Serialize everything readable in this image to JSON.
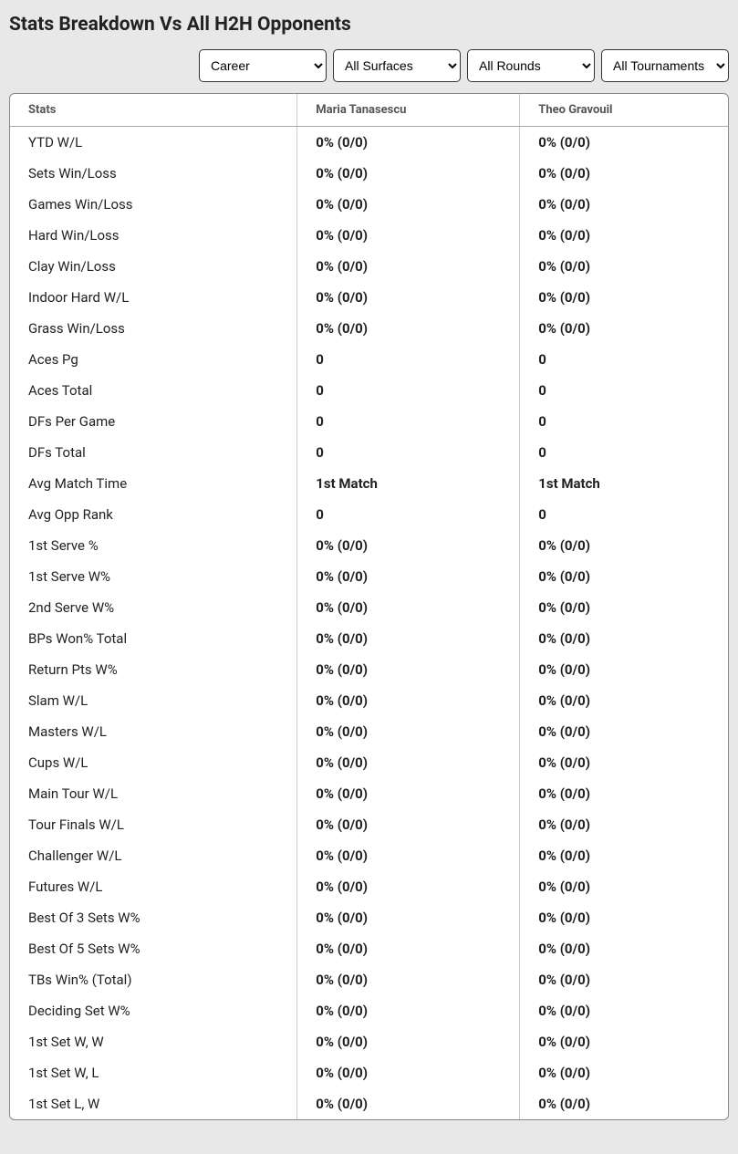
{
  "title": "Stats Breakdown Vs All H2H Opponents",
  "filters": {
    "period": {
      "selected": "Career",
      "options": [
        "Career"
      ]
    },
    "surface": {
      "selected": "All Surfaces",
      "options": [
        "All Surfaces"
      ]
    },
    "round": {
      "selected": "All Rounds",
      "options": [
        "All Rounds"
      ]
    },
    "tournament": {
      "selected": "All Tournaments",
      "options": [
        "All Tournaments"
      ]
    }
  },
  "table": {
    "columns": {
      "stats": "Stats",
      "p1": "Maria Tanasescu",
      "p2": "Theo Gravouil"
    },
    "rows": [
      {
        "stat": "YTD W/L",
        "p1": "0% (0/0)",
        "p2": "0% (0/0)"
      },
      {
        "stat": "Sets Win/Loss",
        "p1": "0% (0/0)",
        "p2": "0% (0/0)"
      },
      {
        "stat": "Games Win/Loss",
        "p1": "0% (0/0)",
        "p2": "0% (0/0)"
      },
      {
        "stat": "Hard Win/Loss",
        "p1": "0% (0/0)",
        "p2": "0% (0/0)"
      },
      {
        "stat": "Clay Win/Loss",
        "p1": "0% (0/0)",
        "p2": "0% (0/0)"
      },
      {
        "stat": "Indoor Hard W/L",
        "p1": "0% (0/0)",
        "p2": "0% (0/0)"
      },
      {
        "stat": "Grass Win/Loss",
        "p1": "0% (0/0)",
        "p2": "0% (0/0)"
      },
      {
        "stat": "Aces Pg",
        "p1": "0",
        "p2": "0"
      },
      {
        "stat": "Aces Total",
        "p1": "0",
        "p2": "0"
      },
      {
        "stat": "DFs Per Game",
        "p1": "0",
        "p2": "0"
      },
      {
        "stat": "DFs Total",
        "p1": "0",
        "p2": "0"
      },
      {
        "stat": "Avg Match Time",
        "p1": "1st Match",
        "p2": "1st Match"
      },
      {
        "stat": "Avg Opp Rank",
        "p1": "0",
        "p2": "0"
      },
      {
        "stat": "1st Serve %",
        "p1": "0% (0/0)",
        "p2": "0% (0/0)"
      },
      {
        "stat": "1st Serve W%",
        "p1": "0% (0/0)",
        "p2": "0% (0/0)"
      },
      {
        "stat": "2nd Serve W%",
        "p1": "0% (0/0)",
        "p2": "0% (0/0)"
      },
      {
        "stat": "BPs Won% Total",
        "p1": "0% (0/0)",
        "p2": "0% (0/0)"
      },
      {
        "stat": "Return Pts W%",
        "p1": "0% (0/0)",
        "p2": "0% (0/0)"
      },
      {
        "stat": "Slam W/L",
        "p1": "0% (0/0)",
        "p2": "0% (0/0)"
      },
      {
        "stat": "Masters W/L",
        "p1": "0% (0/0)",
        "p2": "0% (0/0)"
      },
      {
        "stat": "Cups W/L",
        "p1": "0% (0/0)",
        "p2": "0% (0/0)"
      },
      {
        "stat": "Main Tour W/L",
        "p1": "0% (0/0)",
        "p2": "0% (0/0)"
      },
      {
        "stat": "Tour Finals W/L",
        "p1": "0% (0/0)",
        "p2": "0% (0/0)"
      },
      {
        "stat": "Challenger W/L",
        "p1": "0% (0/0)",
        "p2": "0% (0/0)"
      },
      {
        "stat": "Futures W/L",
        "p1": "0% (0/0)",
        "p2": "0% (0/0)"
      },
      {
        "stat": "Best Of 3 Sets W%",
        "p1": "0% (0/0)",
        "p2": "0% (0/0)"
      },
      {
        "stat": "Best Of 5 Sets W%",
        "p1": "0% (0/0)",
        "p2": "0% (0/0)"
      },
      {
        "stat": "TBs Win% (Total)",
        "p1": "0% (0/0)",
        "p2": "0% (0/0)"
      },
      {
        "stat": "Deciding Set W%",
        "p1": "0% (0/0)",
        "p2": "0% (0/0)"
      },
      {
        "stat": "1st Set W, W",
        "p1": "0% (0/0)",
        "p2": "0% (0/0)"
      },
      {
        "stat": "1st Set W, L",
        "p1": "0% (0/0)",
        "p2": "0% (0/0)"
      },
      {
        "stat": "1st Set L, W",
        "p1": "0% (0/0)",
        "p2": "0% (0/0)"
      }
    ]
  }
}
